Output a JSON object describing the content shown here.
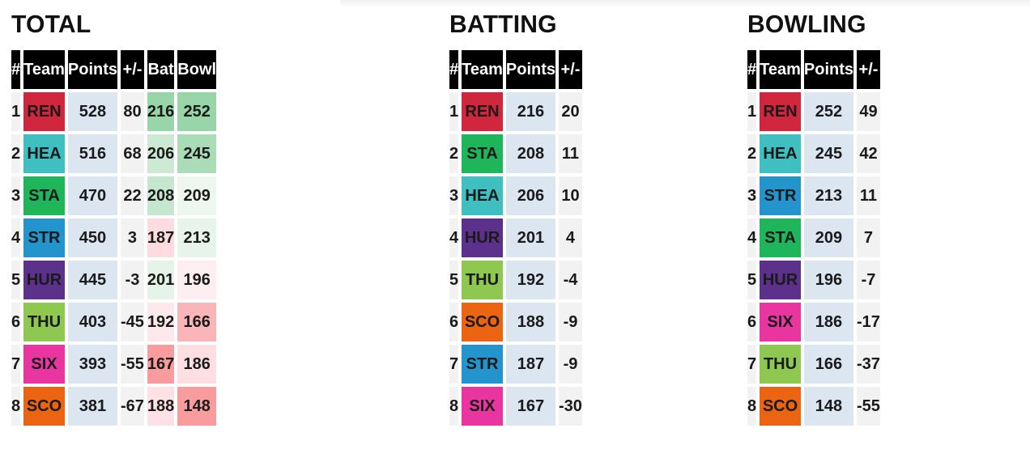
{
  "colors": {
    "REN": "#d0263e",
    "HEA": "#3fbfbf",
    "STA": "#1fb55a",
    "STR": "#2394cc",
    "HUR": "#5c318c",
    "THU": "#8fc850",
    "SIX": "#e9359f",
    "SCO": "#ea6412"
  },
  "total": {
    "title": "TOTAL",
    "headers": [
      "#",
      "Team",
      "Points",
      "+/-",
      "Bat",
      "Bowl"
    ],
    "rows": [
      {
        "rank": "1",
        "team": "REN",
        "points": "528",
        "diff": "80",
        "bat": "216",
        "bowl": "252",
        "bat_color": "#98d5a9",
        "bowl_color": "#98d5a9"
      },
      {
        "rank": "2",
        "team": "HEA",
        "points": "516",
        "diff": "68",
        "bat": "206",
        "bowl": "245",
        "bat_color": "#cbe9d3",
        "bowl_color": "#a9dcb7"
      },
      {
        "rank": "3",
        "team": "STA",
        "points": "470",
        "diff": "22",
        "bat": "208",
        "bowl": "209",
        "bat_color": "#c6e7cf",
        "bowl_color": "#edf7f0"
      },
      {
        "rank": "4",
        "team": "STR",
        "points": "450",
        "diff": "3",
        "bat": "187",
        "bowl": "213",
        "bat_color": "#fcdcdf",
        "bowl_color": "#e7f4eb"
      },
      {
        "rank": "5",
        "team": "HUR",
        "points": "445",
        "diff": "-3",
        "bat": "201",
        "bowl": "196",
        "bat_color": "#e5f3e9",
        "bowl_color": "#fdeff1"
      },
      {
        "rank": "6",
        "team": "THU",
        "points": "403",
        "diff": "-45",
        "bat": "192",
        "bowl": "166",
        "bat_color": "#fde9eb",
        "bowl_color": "#fab5b8"
      },
      {
        "rank": "7",
        "team": "SIX",
        "points": "393",
        "diff": "-55",
        "bat": "167",
        "bowl": "186",
        "bat_color": "#f89c9e",
        "bowl_color": "#fddfe2"
      },
      {
        "rank": "8",
        "team": "SCO",
        "points": "381",
        "diff": "-67",
        "bat": "188",
        "bowl": "148",
        "bat_color": "#fde1e4",
        "bowl_color": "#f89c9e"
      }
    ]
  },
  "batting": {
    "title": "BATTING",
    "headers": [
      "#",
      "Team",
      "Points",
      "+/-"
    ],
    "rows": [
      {
        "rank": "1",
        "team": "REN",
        "points": "216",
        "diff": "20"
      },
      {
        "rank": "2",
        "team": "STA",
        "points": "208",
        "diff": "11"
      },
      {
        "rank": "3",
        "team": "HEA",
        "points": "206",
        "diff": "10"
      },
      {
        "rank": "4",
        "team": "HUR",
        "points": "201",
        "diff": "4"
      },
      {
        "rank": "5",
        "team": "THU",
        "points": "192",
        "diff": "-4"
      },
      {
        "rank": "6",
        "team": "SCO",
        "points": "188",
        "diff": "-9"
      },
      {
        "rank": "7",
        "team": "STR",
        "points": "187",
        "diff": "-9"
      },
      {
        "rank": "8",
        "team": "SIX",
        "points": "167",
        "diff": "-30"
      }
    ]
  },
  "bowling": {
    "title": "BOWLING",
    "headers": [
      "#",
      "Team",
      "Points",
      "+/-"
    ],
    "rows": [
      {
        "rank": "1",
        "team": "REN",
        "points": "252",
        "diff": "49"
      },
      {
        "rank": "2",
        "team": "HEA",
        "points": "245",
        "diff": "42"
      },
      {
        "rank": "3",
        "team": "STR",
        "points": "213",
        "diff": "11"
      },
      {
        "rank": "4",
        "team": "STA",
        "points": "209",
        "diff": "7"
      },
      {
        "rank": "5",
        "team": "HUR",
        "points": "196",
        "diff": "-7"
      },
      {
        "rank": "6",
        "team": "SIX",
        "points": "186",
        "diff": "-17"
      },
      {
        "rank": "7",
        "team": "THU",
        "points": "166",
        "diff": "-37"
      },
      {
        "rank": "8",
        "team": "SCO",
        "points": "148",
        "diff": "-55"
      }
    ]
  }
}
